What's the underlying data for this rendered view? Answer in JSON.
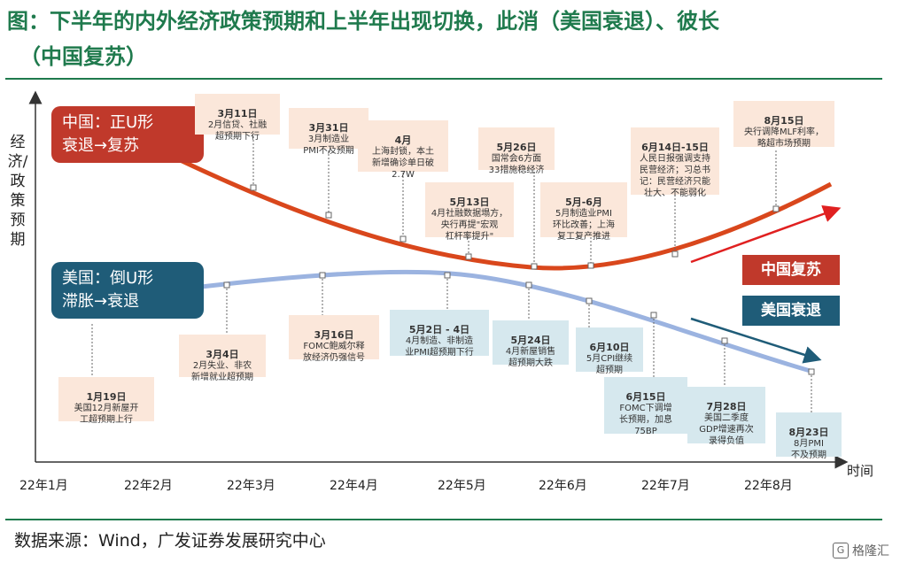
{
  "title": {
    "line1": "图：下半年的内外经济政策预期和上半年出现切换，此消（美国衰退）、彼长",
    "line2": "（中国复苏）"
  },
  "y_axis_label": "经济/政策预期",
  "x_axis_name": "时间",
  "x_ticks": [
    "22年1月",
    "22年2月",
    "22年3月",
    "22年4月",
    "22年5月",
    "22年6月",
    "22年7月",
    "22年8月"
  ],
  "china_label": {
    "line1": "中国：正U形",
    "line2": "衰退→复苏"
  },
  "us_label": {
    "line1": "美国：倒U形",
    "line2": "滞胀→衰退"
  },
  "tag_china": "中国复苏",
  "tag_us": "美国衰退",
  "colors": {
    "china": "#c0392b",
    "us": "#1f5c78",
    "china_note_bg": "#fbe7da",
    "us_note_bg": "#d6e8ee",
    "title": "#1f7a4d"
  },
  "china_notes": [
    {
      "date": "3月11日",
      "text": "2月信贷、社融\n超预期下行"
    },
    {
      "date": "3月31日",
      "text": "3月制造业\nPMI不及预期"
    },
    {
      "date": "4月",
      "text": "上海封锁，本土\n新增确诊单日破\n2.7W"
    },
    {
      "date": "5月13日",
      "text": "4月社融数据塌方，\n央行再提\"宏观\n杠杆率提升\""
    },
    {
      "date": "5月26日",
      "text": "国常会6方面\n33措施稳经济"
    },
    {
      "date": "5月-6月",
      "text": "5月制造业PMI\n环比改善；上海\n复工复产推进"
    },
    {
      "date": "6月14日-15日",
      "text": "人民日报强调支持\n民营经济；习总书\n记：民营经济只能\n壮大、不能弱化"
    },
    {
      "date": "8月15日",
      "text": "央行调降MLF利率，\n略超市场预期"
    }
  ],
  "us_notes": [
    {
      "date": "1月19日",
      "text": "美国12月新屋开\n工超预期上行"
    },
    {
      "date": "3月4日",
      "text": "2月失业、非农\n新增就业超预期"
    },
    {
      "date": "3月16日",
      "text": "FOMC鲍威尔释\n放经济仍强信号"
    },
    {
      "date": "5月2日 - 4日",
      "text": "4月制造、非制造\n业PMI超预期下行"
    },
    {
      "date": "5月24日",
      "text": "4月新屋销售\n超预期大跌"
    },
    {
      "date": "6月10日",
      "text": "5月CPI继续\n超预期"
    },
    {
      "date": "6月15日",
      "text": "FOMC下调增\n长预期，加息\n75BP"
    },
    {
      "date": "7月28日",
      "text": "美国二季度\nGDP增速再次\n录得负值"
    },
    {
      "date": "8月23日",
      "text": "8月PMI\n不及预期"
    }
  ],
  "source": "数据来源：Wind，广发证券发展研究中心",
  "watermark": "格隆汇"
}
